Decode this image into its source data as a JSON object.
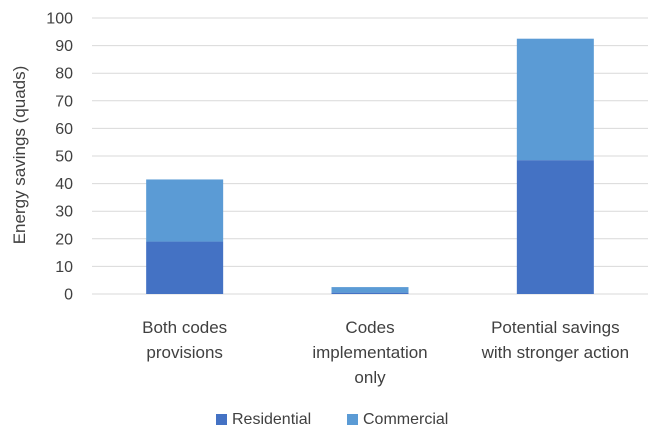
{
  "chart_data": {
    "type": "bar",
    "stacked": true,
    "categories": [
      [
        "Both codes",
        "provisions"
      ],
      [
        "Codes",
        "implementation",
        "only"
      ],
      [
        "Potential savings",
        "with stronger action"
      ]
    ],
    "series": [
      {
        "name": "Residential",
        "values": [
          19,
          0.5,
          48.5
        ],
        "color": "#4472c4"
      },
      {
        "name": "Commercial",
        "values": [
          22.5,
          2,
          44
        ],
        "color": "#5b9bd5"
      }
    ],
    "ylabel": "Energy savings (quads)",
    "xlabel": "",
    "title": "",
    "ylim": [
      0,
      100
    ],
    "yticks": [
      0,
      10,
      20,
      30,
      40,
      50,
      60,
      70,
      80,
      90,
      100
    ],
    "grid": true,
    "legend_position": "bottom"
  }
}
